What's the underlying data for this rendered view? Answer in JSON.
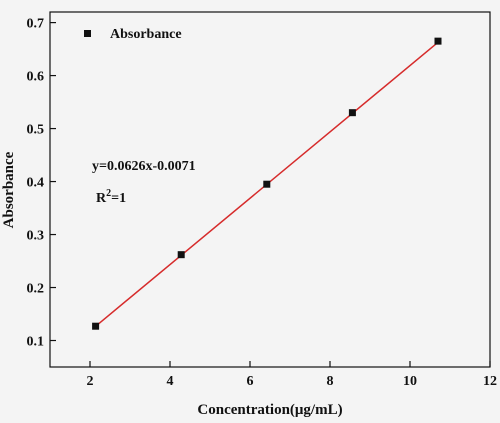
{
  "chart_data": {
    "type": "scatter",
    "xlabel": "Concentration(μg/mL)",
    "ylabel": "Absorbance",
    "xlim": [
      1,
      12
    ],
    "ylim": [
      0.05,
      0.72
    ],
    "xticks": [
      2,
      4,
      6,
      8,
      10,
      12
    ],
    "yticks": [
      0.1,
      0.2,
      0.3,
      0.4,
      0.5,
      0.6,
      0.7
    ],
    "xtick_labels": [
      "2",
      "4",
      "6",
      "8",
      "10",
      "12"
    ],
    "ytick_labels": [
      "0.1",
      "0.2",
      "0.3",
      "0.4",
      "0.5",
      "0.6",
      "0.7"
    ],
    "grid": false,
    "legend_position": "top-left",
    "series": [
      {
        "name": "Absorbance",
        "marker": "square",
        "color": "#111111",
        "x": [
          2.14,
          4.28,
          6.42,
          8.56,
          10.7
        ],
        "y": [
          0.127,
          0.262,
          0.395,
          0.53,
          0.665
        ]
      }
    ],
    "fit_line": {
      "color": "#d62b2b",
      "x_range": [
        2.14,
        10.7
      ],
      "slope": 0.0626,
      "intercept": -0.0071
    },
    "annotations": {
      "equation": "y=0.0626x-0.0071",
      "r2_prefix": "R",
      "r2_sup": "2",
      "r2_suffix": "=1"
    }
  }
}
